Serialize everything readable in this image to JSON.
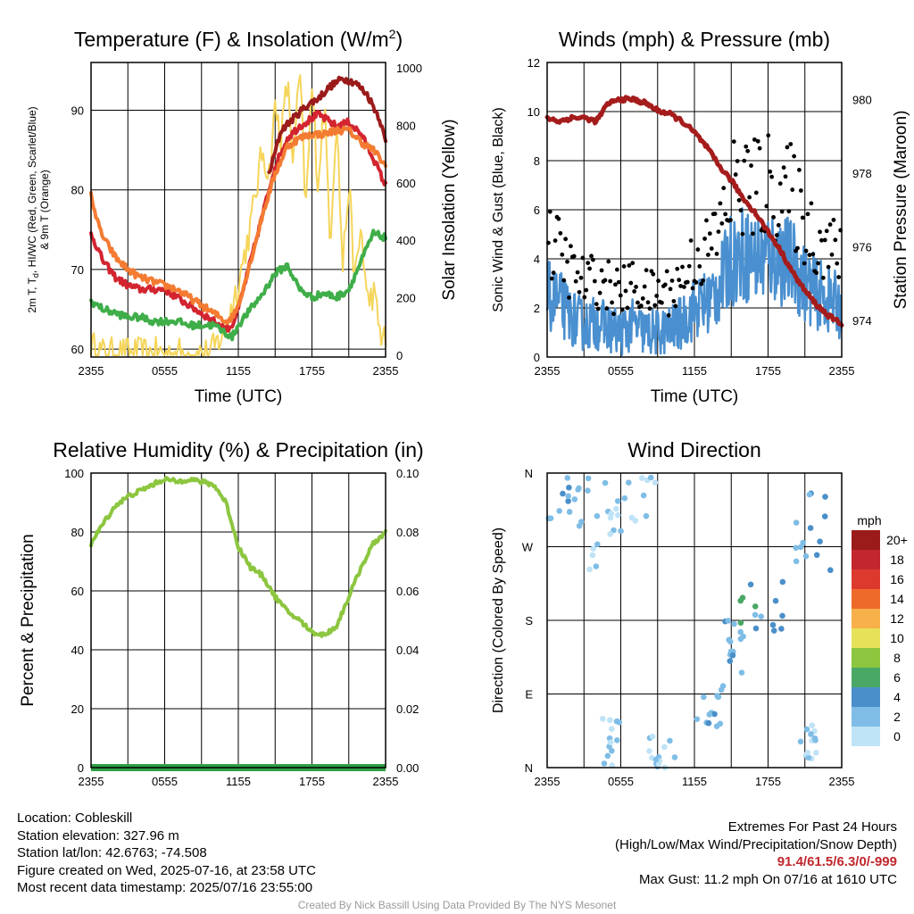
{
  "chart_data": [
    {
      "type": "line",
      "title": "Temperature (F) & Insolation (W/m²)",
      "xlabel": "Time (UTC)",
      "ylabel": "2m T, Td, HI/WC (Red, Green, Scarlet/Blue) & 9m T (Orange)",
      "y2label": "Solar Insolation (Yellow)",
      "x_ticks": [
        "2355",
        "0555",
        "1155",
        "1755",
        "2355"
      ],
      "xlim": [
        0,
        24
      ],
      "ylim": [
        59,
        96
      ],
      "y_ticks": [
        60,
        70,
        80,
        90
      ],
      "y2lim": [
        0,
        1000
      ],
      "y2_ticks": [
        0,
        200,
        400,
        600,
        800,
        1000
      ],
      "grid": true,
      "series": [
        {
          "key": "heat_index",
          "axis": "left",
          "color": "#9b1b1b",
          "x": [
            14.5,
            15.5,
            16.5,
            17.5,
            18.5,
            19.5,
            20.5,
            21.5,
            22.5,
            23.5,
            24
          ],
          "y": [
            82,
            87.5,
            89,
            90.5,
            91.5,
            93,
            94,
            93.5,
            92,
            89,
            86
          ]
        },
        {
          "key": "temperature_2m",
          "axis": "left",
          "color": "#d32430",
          "x": [
            0,
            1,
            2,
            3,
            4,
            5,
            6,
            7,
            8,
            9,
            10,
            11,
            11.5,
            12,
            13,
            14,
            15,
            16,
            17,
            18,
            18.5,
            19,
            20,
            21,
            22,
            23,
            24
          ],
          "y": [
            74.5,
            71,
            69,
            68,
            67.5,
            67.5,
            67.5,
            66.5,
            65.5,
            64.5,
            63.5,
            62.5,
            63,
            65,
            71,
            77,
            83,
            86.5,
            88,
            89,
            89.5,
            89,
            88,
            88.5,
            87,
            84,
            80.5
          ]
        },
        {
          "key": "temperature_9m",
          "axis": "left",
          "color": "#f47b32",
          "x": [
            0,
            0.5,
            1,
            2,
            3,
            4,
            5,
            6,
            7,
            8,
            9,
            10,
            11,
            11.5,
            12,
            13,
            14,
            15,
            16,
            17,
            18,
            19,
            20,
            21,
            22,
            23,
            24
          ],
          "y": [
            79.5,
            76,
            74,
            71.5,
            70,
            69,
            68.5,
            68,
            67.5,
            66.5,
            65.5,
            64.5,
            63.5,
            64,
            65.5,
            71,
            77,
            82,
            85.5,
            86.5,
            87,
            87,
            87.5,
            87.5,
            86,
            85,
            83
          ]
        },
        {
          "key": "dewpoint",
          "axis": "left",
          "color": "#3fae49",
          "x": [
            0,
            1,
            2,
            3,
            4,
            5,
            6,
            7,
            8,
            9,
            10,
            11,
            11.5,
            12,
            13,
            14,
            15,
            16,
            17,
            18,
            19,
            20,
            21,
            22,
            23,
            24
          ],
          "y": [
            66,
            65,
            64.5,
            64,
            64,
            63.5,
            63.5,
            63.5,
            63,
            63,
            63,
            62,
            61.5,
            63,
            65,
            67,
            69.5,
            70.5,
            67.5,
            66.5,
            67,
            66.5,
            67.5,
            71,
            74.5,
            74
          ]
        },
        {
          "key": "solar_insolation",
          "axis": "right",
          "color": "#f5d55a",
          "x": [
            0,
            1,
            2,
            3,
            4,
            5,
            6,
            7,
            8,
            9,
            9.7,
            10,
            11,
            12,
            13,
            14,
            14.5,
            15,
            15.5,
            16,
            16.5,
            17,
            17.5,
            18,
            18.5,
            19,
            19.5,
            20,
            20.5,
            21,
            21.5,
            22,
            22.5,
            23,
            23.5,
            24
          ],
          "y": [
            30,
            5,
            5,
            5,
            5,
            5,
            5,
            5,
            5,
            5,
            5,
            20,
            100,
            250,
            450,
            720,
            620,
            860,
            760,
            950,
            660,
            1000,
            500,
            930,
            600,
            880,
            400,
            850,
            300,
            600,
            250,
            450,
            180,
            220,
            90,
            40
          ]
        }
      ]
    },
    {
      "type": "scatter",
      "title": "Winds (mph) & Pressure (mb)",
      "xlabel": "Time (UTC)",
      "ylabel": "Sonic Wind & Gust (Blue, Black)",
      "y2label": "Station Pressure (Maroon)",
      "x_ticks": [
        "2355",
        "0555",
        "1155",
        "1755",
        "2355"
      ],
      "xlim": [
        0,
        24
      ],
      "ylim": [
        0,
        12
      ],
      "y_ticks": [
        0,
        2,
        4,
        6,
        8,
        10,
        12
      ],
      "y2lim": [
        973,
        981
      ],
      "y2_ticks": [
        974,
        976,
        978,
        980
      ],
      "grid": true,
      "pressure": {
        "color": "#a51c1c",
        "x": [
          0,
          1,
          2,
          3,
          4,
          5,
          6,
          7,
          8,
          9,
          10,
          11,
          12,
          13,
          14,
          15,
          16,
          17,
          18,
          19,
          20,
          21,
          22,
          23,
          24
        ],
        "y": [
          979.5,
          979.4,
          979.5,
          979.5,
          979.4,
          979.9,
          980.0,
          980.0,
          979.9,
          979.7,
          979.6,
          979.4,
          979.1,
          978.7,
          978.2,
          977.8,
          977.3,
          976.9,
          976.4,
          975.9,
          975.3,
          974.8,
          974.4,
          974.1,
          973.9
        ]
      },
      "sustained_color": "#4a90d0",
      "gust_color": "#000000",
      "wind_profile": {
        "x": [
          0,
          1,
          2,
          3,
          4,
          5,
          6,
          7,
          8,
          9,
          10,
          11,
          12,
          13,
          14,
          15,
          16,
          17,
          18,
          19,
          20,
          21,
          22,
          23,
          24
        ],
        "y": [
          2.5,
          2.2,
          1.6,
          1.3,
          1.4,
          1.2,
          1.0,
          1.3,
          1.0,
          1.0,
          1.1,
          1.4,
          2.0,
          2.2,
          2.8,
          4.0,
          4.2,
          4.0,
          4.1,
          4.0,
          3.8,
          3.0,
          2.6,
          2.3,
          2.0
        ]
      }
    },
    {
      "type": "line",
      "title": "Relative Humidity (%) & Precipitation (in)",
      "ylabel": "Percent & Precipitation",
      "x_ticks": [
        "2355",
        "0555",
        "1155",
        "1755",
        "2355"
      ],
      "xlim": [
        0,
        24
      ],
      "ylim": [
        0,
        100
      ],
      "y_ticks": [
        0,
        20,
        40,
        60,
        80,
        100
      ],
      "y2lim": [
        0,
        0.1
      ],
      "y2_ticks": [
        "0.00",
        "0.02",
        "0.04",
        "0.06",
        "0.08",
        "0.10"
      ],
      "grid": true,
      "series": [
        {
          "key": "relative_humidity",
          "axis": "left",
          "color": "#8cc63f",
          "x": [
            0,
            1,
            2,
            3,
            4,
            5,
            6,
            7,
            8,
            9,
            10,
            11,
            12,
            13,
            14,
            15,
            16,
            17,
            18,
            19,
            20,
            21,
            22,
            23,
            24
          ],
          "y": [
            76,
            83,
            89,
            92,
            94,
            96,
            98,
            97,
            98,
            97,
            96,
            90,
            75,
            68,
            65,
            58,
            53,
            50,
            46,
            45,
            48,
            58,
            68,
            76,
            80
          ]
        },
        {
          "key": "precipitation",
          "axis": "right",
          "color": "#2f9e44",
          "x": [
            0,
            24
          ],
          "y": [
            0,
            0
          ]
        }
      ]
    },
    {
      "type": "scatter",
      "title": "Wind Direction",
      "ylabel": "Direction (Colored By Speed)",
      "x_ticks": [
        "2355",
        "0555",
        "1155",
        "1755",
        "2355"
      ],
      "xlim": [
        0,
        24
      ],
      "y_ticks": [
        "N",
        "E",
        "S",
        "W",
        "N"
      ],
      "ylim": [
        0,
        360
      ],
      "grid": true,
      "colorbar": {
        "title": "mph",
        "labels": [
          "0",
          "2",
          "4",
          "6",
          "8",
          "10",
          "12",
          "14",
          "16",
          "18",
          "20+"
        ],
        "colors": [
          "#bfe3f7",
          "#7fbde6",
          "#4a8fc9",
          "#49a866",
          "#8cc63f",
          "#e7e15a",
          "#f8b04a",
          "#ee6a2b",
          "#dd3a2e",
          "#c1272d",
          "#9b1b1b"
        ]
      },
      "clusters": [
        {
          "x": [
            0,
            3
          ],
          "y": [
            270,
            355
          ],
          "speed": [
            1,
            4
          ]
        },
        {
          "x": [
            3,
            5.5
          ],
          "y": [
            240,
            360
          ],
          "speed": [
            0,
            3
          ]
        },
        {
          "x": [
            5.5,
            9
          ],
          "y": [
            280,
            360
          ],
          "speed": [
            0,
            3
          ]
        },
        {
          "x": [
            4.5,
            6
          ],
          "y": [
            0,
            60
          ],
          "speed": [
            0,
            2
          ]
        },
        {
          "x": [
            8,
            10.5
          ],
          "y": [
            0,
            40
          ],
          "speed": [
            0,
            2
          ]
        },
        {
          "x": [
            12,
            14.5
          ],
          "y": [
            40,
            100
          ],
          "speed": [
            1,
            4
          ]
        },
        {
          "x": [
            14.5,
            16
          ],
          "y": [
            110,
            180
          ],
          "speed": [
            1,
            4
          ]
        },
        {
          "x": [
            15.5,
            20
          ],
          "y": [
            160,
            230
          ],
          "speed": [
            2,
            6
          ]
        },
        {
          "x": [
            20,
            24
          ],
          "y": [
            230,
            340
          ],
          "speed": [
            1,
            4
          ]
        },
        {
          "x": [
            20.5,
            22
          ],
          "y": [
            0,
            60
          ],
          "speed": [
            0,
            2
          ]
        }
      ]
    }
  ],
  "info": {
    "location": "Location: Cobleskill",
    "elevation": "Station elevation: 327.96 m",
    "latlon": "Station lat/lon: 42.6763; -74.508",
    "created": "Figure created on Wed, 2025-07-16, at 23:58 UTC",
    "recent": "Most recent data timestamp: 2025/07/16 23:55:00"
  },
  "extremes": {
    "title": "Extremes For Past 24 Hours",
    "subtitle": "(High/Low/Max Wind/Precipitation/Snow Depth)",
    "values": "91.4/61.5/6.3/0/-999",
    "max_gust": "Max Gust: 11.2 mph On 07/16 at 1610 UTC"
  },
  "credit": "Created By Nick Bassill Using Data Provided By The NYS Mesonet"
}
